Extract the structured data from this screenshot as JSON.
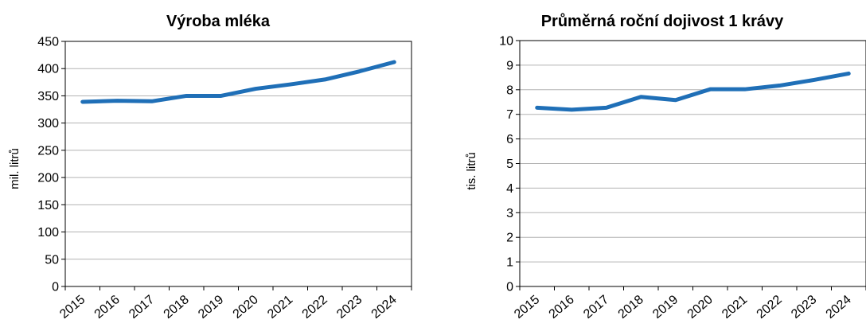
{
  "chart_data": [
    {
      "type": "line",
      "title": "Výroba mléka",
      "xlabel": "",
      "ylabel": "mil. litrů",
      "categories": [
        "2015",
        "2016",
        "2017",
        "2018",
        "2019",
        "2020",
        "2021",
        "2022",
        "2023",
        "2024"
      ],
      "series": [
        {
          "values": [
            339,
            341,
            340,
            350,
            350,
            363,
            371,
            380,
            395,
            412
          ]
        }
      ],
      "ylim": [
        0,
        450
      ],
      "yticks": [
        "0",
        "50",
        "100",
        "150",
        "200",
        "250",
        "300",
        "350",
        "400",
        "450"
      ],
      "grid": true,
      "legend": "none",
      "line_color": "#1f6fb7"
    },
    {
      "type": "line",
      "title": "Průměrná roční dojivost 1 krávy",
      "xlabel": "",
      "ylabel": "tis. litrů",
      "categories": [
        "2015",
        "2016",
        "2017",
        "2018",
        "2019",
        "2020",
        "2021",
        "2022",
        "2023",
        "2024"
      ],
      "series": [
        {
          "values": [
            7.27,
            7.19,
            7.27,
            7.71,
            7.58,
            8.02,
            8.02,
            8.17,
            8.4,
            8.66
          ]
        }
      ],
      "ylim": [
        0,
        10
      ],
      "yticks": [
        "0",
        "1",
        "2",
        "3",
        "4",
        "5",
        "6",
        "7",
        "8",
        "9",
        "10"
      ],
      "grid": true,
      "legend": "none",
      "line_color": "#1f6fb7"
    }
  ]
}
